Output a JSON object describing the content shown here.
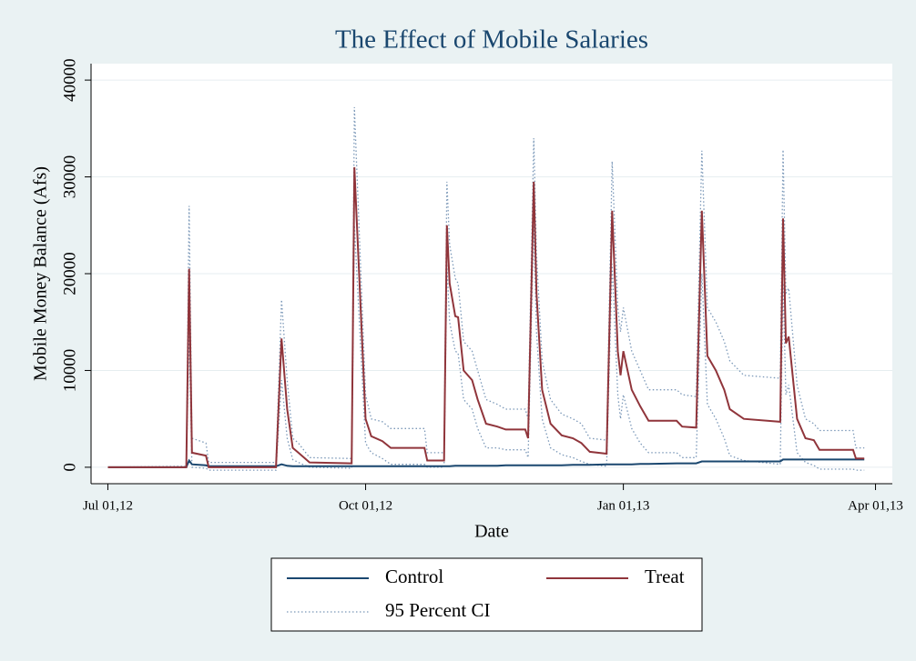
{
  "chart_data": {
    "type": "line",
    "title": "The Effect of Mobile Salaries",
    "x_label": "Date",
    "y_label": "Mobile Money Balance (Afs)",
    "x": [
      "2012-07-01",
      "2012-07-29",
      "2012-07-30",
      "2012-07-31",
      "2012-08-05",
      "2012-08-06",
      "2012-08-30",
      "2012-09-01",
      "2012-09-03",
      "2012-09-05",
      "2012-09-07",
      "2012-09-11",
      "2012-09-26",
      "2012-09-27",
      "2012-10-01",
      "2012-10-03",
      "2012-10-07",
      "2012-10-10",
      "2012-10-22",
      "2012-10-23",
      "2012-10-29",
      "2012-10-30",
      "2012-10-31",
      "2012-11-02",
      "2012-11-03",
      "2012-11-05",
      "2012-11-08",
      "2012-11-10",
      "2012-11-13",
      "2012-11-17",
      "2012-11-20",
      "2012-11-27",
      "2012-11-28",
      "2012-11-30",
      "2012-12-01",
      "2012-12-03",
      "2012-12-06",
      "2012-12-10",
      "2012-12-14",
      "2012-12-17",
      "2012-12-20",
      "2012-12-26",
      "2012-12-28",
      "2012-12-30",
      "2012-12-31",
      "2013-01-01",
      "2013-01-04",
      "2013-01-07",
      "2013-01-10",
      "2013-01-20",
      "2013-01-22",
      "2013-01-27",
      "2013-01-29",
      "2013-01-31",
      "2013-02-03",
      "2013-02-06",
      "2013-02-08",
      "2013-02-13",
      "2013-02-26",
      "2013-02-27",
      "2013-02-28",
      "2013-03-01",
      "2013-03-04",
      "2013-03-07",
      "2013-03-10",
      "2013-03-12",
      "2013-03-24",
      "2013-03-25",
      "2013-03-28"
    ],
    "series": [
      {
        "name": "Control",
        "color": "#1a476f",
        "style": "solid",
        "values": [
          0,
          0,
          700,
          300,
          200,
          100,
          100,
          300,
          150,
          100,
          100,
          100,
          100,
          100,
          100,
          100,
          100,
          100,
          100,
          100,
          100,
          100,
          100,
          150,
          150,
          150,
          150,
          150,
          150,
          150,
          200,
          200,
          200,
          200,
          200,
          200,
          200,
          200,
          250,
          250,
          250,
          300,
          300,
          300,
          300,
          300,
          300,
          350,
          350,
          400,
          400,
          400,
          600,
          600,
          600,
          600,
          600,
          600,
          600,
          800,
          800,
          800,
          800,
          800,
          800,
          800,
          800,
          800,
          800
        ]
      },
      {
        "name": "Treat",
        "color": "#90353b",
        "style": "solid",
        "values": [
          0,
          0,
          20500,
          1500,
          1200,
          0,
          0,
          13300,
          6000,
          2000,
          1500,
          500,
          400,
          31000,
          5000,
          3200,
          2700,
          2000,
          2000,
          700,
          700,
          25000,
          19000,
          15600,
          15500,
          10000,
          9000,
          7000,
          4500,
          4200,
          3900,
          3900,
          3000,
          29500,
          18000,
          8000,
          4500,
          3300,
          3000,
          2500,
          1600,
          1400,
          26500,
          12000,
          9500,
          12000,
          8000,
          6300,
          4800,
          4800,
          4200,
          4100,
          26500,
          11500,
          10000,
          8000,
          6000,
          5000,
          4700,
          25700,
          12800,
          13500,
          5000,
          3000,
          2800,
          1800,
          1800,
          900,
          900
        ]
      },
      {
        "name": "95 Percent CI",
        "color": "#7b98b8",
        "style": "dotted",
        "values": [
          0,
          100,
          27000,
          3000,
          2500,
          500,
          500,
          17300,
          9000,
          3000,
          2500,
          1000,
          900,
          37200,
          7500,
          5000,
          4700,
          4000,
          4000,
          1500,
          1500,
          29500,
          23000,
          19500,
          19000,
          13000,
          12000,
          10000,
          7000,
          6500,
          6000,
          6000,
          5000,
          34000,
          22000,
          11000,
          7000,
          5500,
          5000,
          4500,
          3000,
          2800,
          31600,
          16500,
          14000,
          16500,
          12000,
          10000,
          8000,
          8000,
          7500,
          7300,
          32700,
          16500,
          15000,
          13000,
          11000,
          9500,
          9200,
          32800,
          18000,
          18500,
          8500,
          5000,
          4500,
          3800,
          3800,
          2000,
          2000
        ],
        "lower": [
          0,
          0,
          14000,
          0,
          -100,
          -300,
          -300,
          9000,
          3000,
          800,
          500,
          0,
          -100,
          25000,
          2500,
          1500,
          900,
          300,
          300,
          0,
          0,
          21000,
          15000,
          12000,
          11800,
          7000,
          6000,
          4000,
          2000,
          2000,
          1800,
          1800,
          1000,
          25000,
          14000,
          5000,
          2000,
          1300,
          1000,
          600,
          300,
          100,
          21000,
          7500,
          5000,
          7500,
          4000,
          2500,
          1500,
          1500,
          1000,
          1000,
          20000,
          6500,
          5000,
          3000,
          1200,
          700,
          300,
          19000,
          7500,
          8500,
          1500,
          500,
          200,
          -200,
          -200,
          -300,
          -300
        ]
      }
    ],
    "xlim": [
      "2012-06-25",
      "2013-04-07"
    ],
    "xticks": [
      {
        "value": "2012-07-01",
        "label": "Jul 01,12"
      },
      {
        "value": "2012-10-01",
        "label": "Oct 01,12"
      },
      {
        "value": "2013-01-01",
        "label": "Jan 01,13"
      },
      {
        "value": "2013-04-01",
        "label": "Apr 01,13"
      }
    ],
    "ylim": [
      -1700,
      41700
    ],
    "yticks": [
      0,
      10000,
      20000,
      30000,
      40000
    ],
    "grid": true,
    "legend": "bottom"
  }
}
